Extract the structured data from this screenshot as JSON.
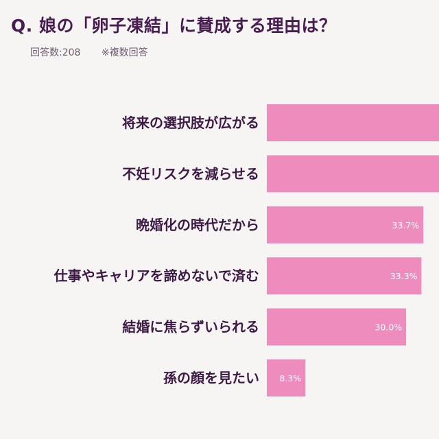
{
  "header": {
    "title": "Q. 娘の「卵子凍結」に賛成する理由は？",
    "respondents": "回答数:208",
    "multiple": "※複数回答"
  },
  "colors": {
    "bar": "#ef8cbe",
    "title": "#4a1d52",
    "label": "#3d1a45",
    "background": "#f6f5f3"
  },
  "chart_data": {
    "type": "bar",
    "orientation": "horizontal",
    "categories": [
      "将来の選択肢が広がる",
      "不妊リスクを減らせる",
      "晩婚化の時代だから",
      "仕事やキャリアを諦めないで済む",
      "結婚に焦らずいられる",
      "孫の顔を見たい"
    ],
    "values": [
      null,
      null,
      33.7,
      33.3,
      30.0,
      8.3
    ],
    "value_labels": [
      "",
      "",
      "33.7%",
      "33.3%",
      "30.0%",
      "8.3%"
    ],
    "truncated": [
      true,
      true,
      false,
      false,
      false,
      false
    ],
    "xlim": [
      0,
      100
    ],
    "grid": false,
    "legend": "none"
  }
}
